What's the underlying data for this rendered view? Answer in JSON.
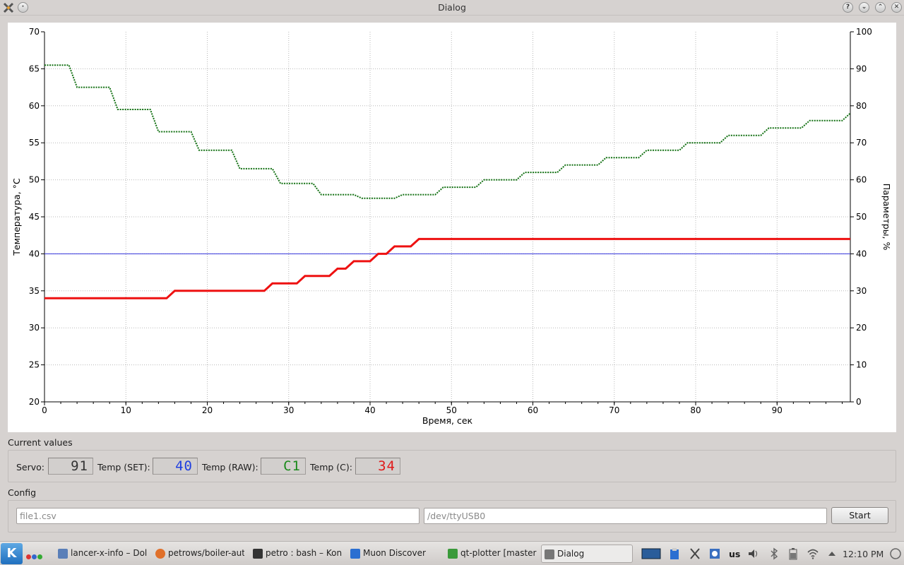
{
  "window": {
    "title": "Dialog",
    "buttons": [
      "?",
      "⌄",
      "⌃",
      "✕"
    ]
  },
  "chart_data": {
    "type": "line",
    "xlabel": "Время, сек",
    "ylabel_left": "Температура, °C",
    "ylabel_right": "Параметры, %",
    "xlim": [
      0,
      99
    ],
    "ylim_left": [
      20,
      70
    ],
    "ylim_right": [
      0,
      100
    ],
    "x_ticks": [
      0,
      10,
      20,
      30,
      40,
      50,
      60,
      70,
      80,
      90
    ],
    "y_left_ticks": [
      20,
      25,
      30,
      35,
      40,
      45,
      50,
      55,
      60,
      65,
      70
    ],
    "y_right_ticks": [
      0,
      10,
      20,
      30,
      40,
      50,
      60,
      70,
      80,
      90,
      100
    ],
    "grid": true,
    "series": [
      {
        "axis": "right",
        "color": "#127012",
        "style": "dotted",
        "points": [
          [
            0,
            91
          ],
          [
            3,
            91
          ],
          [
            4,
            85
          ],
          [
            8,
            85
          ],
          [
            9,
            79
          ],
          [
            13,
            79
          ],
          [
            14,
            73
          ],
          [
            18,
            73
          ],
          [
            19,
            68
          ],
          [
            23,
            68
          ],
          [
            24,
            63
          ],
          [
            28,
            63
          ],
          [
            29,
            59
          ],
          [
            33,
            59
          ],
          [
            34,
            56
          ],
          [
            38,
            56
          ],
          [
            39,
            55
          ],
          [
            43,
            55
          ],
          [
            44,
            56
          ],
          [
            48,
            56
          ],
          [
            49,
            58
          ],
          [
            53,
            58
          ],
          [
            54,
            60
          ],
          [
            58,
            60
          ],
          [
            59,
            62
          ],
          [
            63,
            62
          ],
          [
            64,
            64
          ],
          [
            68,
            64
          ],
          [
            69,
            66
          ],
          [
            73,
            66
          ],
          [
            74,
            68
          ],
          [
            78,
            68
          ],
          [
            79,
            70
          ],
          [
            83,
            70
          ],
          [
            84,
            72
          ],
          [
            88,
            72
          ],
          [
            89,
            74
          ],
          [
            93,
            74
          ],
          [
            94,
            76
          ],
          [
            98,
            76
          ],
          [
            99,
            78
          ]
        ]
      },
      {
        "axis": "left",
        "color": "#3333dd",
        "style": "solid",
        "points": [
          [
            0,
            40
          ],
          [
            99,
            40
          ]
        ]
      },
      {
        "axis": "left",
        "color": "#ee1111",
        "style": "solid-thick",
        "points": [
          [
            0,
            34
          ],
          [
            15,
            34
          ],
          [
            16,
            35
          ],
          [
            27,
            35
          ],
          [
            28,
            36
          ],
          [
            31,
            36
          ],
          [
            32,
            37
          ],
          [
            35,
            37
          ],
          [
            36,
            38
          ],
          [
            37,
            38
          ],
          [
            38,
            39
          ],
          [
            40,
            39
          ],
          [
            41,
            40
          ],
          [
            42,
            40
          ],
          [
            43,
            41
          ],
          [
            45,
            41
          ],
          [
            46,
            42
          ],
          [
            99,
            42
          ]
        ]
      }
    ]
  },
  "current_values": {
    "title": "Current values",
    "servo_label": "Servo:",
    "servo_value": "91",
    "temp_set_label": "Temp (SET):",
    "temp_set_value": "40",
    "temp_raw_label": "Temp (RAW):",
    "temp_raw_value": "C1",
    "temp_c_label": "Temp (C):",
    "temp_c_value": "34"
  },
  "config": {
    "title": "Config",
    "file_placeholder": "file1.csv",
    "port_placeholder": "/dev/ttyUSB0",
    "start_label": "Start"
  },
  "taskbar": {
    "tasks": [
      {
        "label": "lancer-x-info – Dolphin",
        "color": "#5a7fb8"
      },
      {
        "label": "petrows/boiler-aut",
        "color": "#e0702a"
      },
      {
        "label": "petro : bash – Konsole",
        "color": "#333333"
      },
      {
        "label": "Muon Discover",
        "color": "#2b6fd1"
      },
      {
        "label": "qt-plotter [master]",
        "color": "#3a9a3a"
      },
      {
        "label": "Dialog",
        "color": "#777777"
      }
    ],
    "keyboard_layout": "us",
    "clock": "12:10 PM"
  }
}
